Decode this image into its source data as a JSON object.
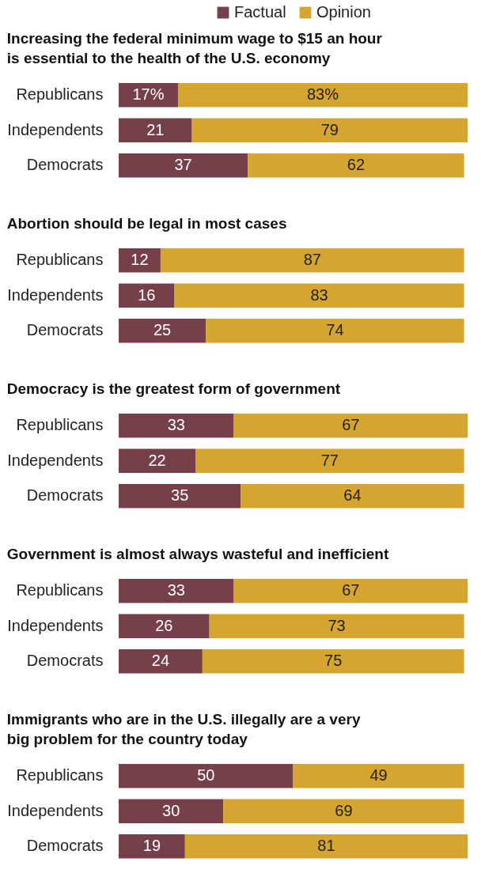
{
  "chart_data": [
    {
      "type": "bar",
      "orientation": "horizontal",
      "stacked": true,
      "legend": "top",
      "tick_labels": "y",
      "title": "Increasing the federal minimum wage to $15 an hour is essential to the health of the U.S. economy",
      "categories": [
        "Republicans",
        "Independents",
        "Democrats"
      ],
      "series": [
        {
          "name": "Factual",
          "color": "#76404b",
          "values": [
            17,
            21,
            37
          ],
          "value_labels": [
            "17%",
            "21",
            "37"
          ]
        },
        {
          "name": "Opinion",
          "color": "#d5a530",
          "values": [
            83,
            79,
            62
          ],
          "value_labels": [
            "83%",
            "79",
            "62"
          ]
        }
      ]
    },
    {
      "type": "bar",
      "orientation": "horizontal",
      "stacked": true,
      "tick_labels": "y",
      "title": "Abortion should be legal in most cases",
      "categories": [
        "Republicans",
        "Independents",
        "Democrats"
      ],
      "series": [
        {
          "name": "Factual",
          "color": "#76404b",
          "values": [
            12,
            16,
            25
          ],
          "value_labels": [
            "12",
            "16",
            "25"
          ]
        },
        {
          "name": "Opinion",
          "color": "#d5a530",
          "values": [
            87,
            83,
            74
          ],
          "value_labels": [
            "87",
            "83",
            "74"
          ]
        }
      ]
    },
    {
      "type": "bar",
      "orientation": "horizontal",
      "stacked": true,
      "tick_labels": "y",
      "title": "Democracy is the greatest form of government",
      "categories": [
        "Republicans",
        "Independents",
        "Democrats"
      ],
      "series": [
        {
          "name": "Factual",
          "color": "#76404b",
          "values": [
            33,
            22,
            35
          ],
          "value_labels": [
            "33",
            "22",
            "35"
          ]
        },
        {
          "name": "Opinion",
          "color": "#d5a530",
          "values": [
            67,
            77,
            64
          ],
          "value_labels": [
            "67",
            "77",
            "64"
          ]
        }
      ]
    },
    {
      "type": "bar",
      "orientation": "horizontal",
      "stacked": true,
      "tick_labels": "y",
      "title": "Government is almost always wasteful and inefficient",
      "categories": [
        "Republicans",
        "Independents",
        "Democrats"
      ],
      "series": [
        {
          "name": "Factual",
          "color": "#76404b",
          "values": [
            33,
            26,
            24
          ],
          "value_labels": [
            "33",
            "26",
            "24"
          ]
        },
        {
          "name": "Opinion",
          "color": "#d5a530",
          "values": [
            67,
            73,
            75
          ],
          "value_labels": [
            "67",
            "73",
            "75"
          ]
        }
      ]
    },
    {
      "type": "bar",
      "orientation": "horizontal",
      "stacked": true,
      "tick_labels": "y",
      "title": "Immigrants who are in the U.S. illegally are a very big problem for the country today",
      "categories": [
        "Republicans",
        "Independents",
        "Democrats"
      ],
      "series": [
        {
          "name": "Factual",
          "color": "#76404b",
          "values": [
            50,
            30,
            19
          ],
          "value_labels": [
            "50",
            "30",
            "19"
          ]
        },
        {
          "name": "Opinion",
          "color": "#d5a530",
          "values": [
            49,
            69,
            81
          ],
          "value_labels": [
            "49",
            "69",
            "81"
          ]
        }
      ]
    }
  ]
}
